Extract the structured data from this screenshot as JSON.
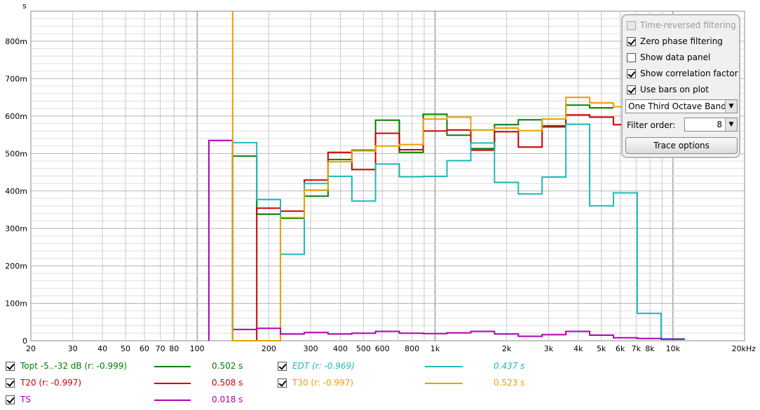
{
  "chart_data": {
    "type": "line",
    "step": true,
    "title": "",
    "ylabel": "s",
    "xlabel": "",
    "x_scale": "log",
    "xlim": [
      20,
      20000
    ],
    "ylim": [
      0,
      0.88
    ],
    "grid": true,
    "x_ticks": [
      {
        "v": 20,
        "label": "20"
      },
      {
        "v": 30,
        "label": "30"
      },
      {
        "v": 40,
        "label": "40"
      },
      {
        "v": 50,
        "label": "50"
      },
      {
        "v": 60,
        "label": "60"
      },
      {
        "v": 70,
        "label": "70"
      },
      {
        "v": 80,
        "label": "80"
      },
      {
        "v": 100,
        "label": "100"
      },
      {
        "v": 200,
        "label": "200"
      },
      {
        "v": 300,
        "label": "300"
      },
      {
        "v": 400,
        "label": "400"
      },
      {
        "v": 500,
        "label": "500"
      },
      {
        "v": 600,
        "label": "600"
      },
      {
        "v": 800,
        "label": "800"
      },
      {
        "v": 1000,
        "label": "1k"
      },
      {
        "v": 2000,
        "label": "2k"
      },
      {
        "v": 3000,
        "label": "3k"
      },
      {
        "v": 4000,
        "label": "4k"
      },
      {
        "v": 5000,
        "label": "5k"
      },
      {
        "v": 6000,
        "label": "6k"
      },
      {
        "v": 7000,
        "label": "7k"
      },
      {
        "v": 8000,
        "label": "8k"
      },
      {
        "v": 10000,
        "label": "10k"
      },
      {
        "v": 20000,
        "label": "20kHz"
      }
    ],
    "y_ticks": [
      {
        "v": 0,
        "label": "0"
      },
      {
        "v": 0.1,
        "label": "100m"
      },
      {
        "v": 0.2,
        "label": "200m"
      },
      {
        "v": 0.3,
        "label": "300m"
      },
      {
        "v": 0.4,
        "label": "400m"
      },
      {
        "v": 0.5,
        "label": "500m"
      },
      {
        "v": 0.6,
        "label": "600m"
      },
      {
        "v": 0.7,
        "label": "700m"
      },
      {
        "v": 0.8,
        "label": "800m"
      }
    ],
    "band_edges": [
      112,
      141,
      178,
      224,
      282,
      355,
      447,
      562,
      708,
      891,
      1122,
      1413,
      1778,
      2239,
      2818,
      3548,
      4467,
      5623,
      7079,
      8913,
      11220
    ],
    "series": [
      {
        "name": "Topt -5..-32 dB (r: -0.999)",
        "color": "#008000",
        "start": 1,
        "values": [
          0.493,
          0.338,
          0.327,
          0.386,
          0.484,
          0.509,
          0.589,
          0.503,
          0.605,
          0.549,
          0.513,
          0.577,
          0.59,
          0.574,
          0.629,
          0.622,
          null,
          null,
          null,
          null
        ]
      },
      {
        "name": "T20 (r: -0.997)",
        "color": "#cc0000",
        "start": 1,
        "values": [
          0.0,
          0.354,
          0.346,
          0.429,
          0.503,
          0.457,
          0.554,
          0.51,
          0.56,
          0.563,
          0.509,
          0.558,
          0.517,
          0.571,
          0.603,
          0.597,
          0.577,
          null,
          null,
          null
        ]
      },
      {
        "name": "EDT (r: -0.969)",
        "color": "#20b8b8",
        "start": 1,
        "values": [
          0.529,
          0.377,
          0.231,
          0.42,
          0.439,
          0.373,
          0.472,
          0.438,
          0.439,
          0.481,
          0.528,
          0.423,
          0.392,
          0.437,
          0.578,
          0.36,
          0.395,
          0.073,
          0.005,
          0.002
        ]
      },
      {
        "name": "T30 (r: -0.997)",
        "color": "#e8a000",
        "start": 1,
        "values": [
          0.0,
          0.0,
          0.329,
          0.402,
          0.478,
          0.507,
          0.52,
          0.524,
          0.592,
          0.597,
          0.563,
          0.568,
          0.561,
          0.592,
          0.65,
          0.635,
          0.625,
          null,
          null,
          null
        ]
      },
      {
        "name": "TS",
        "color": "#b000b0",
        "start": 0,
        "values": [
          0.535,
          0.03,
          0.033,
          0.018,
          0.022,
          0.018,
          0.02,
          0.025,
          0.02,
          0.019,
          0.021,
          0.025,
          0.018,
          0.012,
          0.016,
          0.025,
          0.015,
          0.008,
          0.006,
          0.004
        ]
      }
    ]
  },
  "panel": {
    "opt_time_reversed": "Time-reversed filtering",
    "opt_zero_phase": "Zero phase filtering",
    "opt_data_panel": "Show data panel",
    "opt_correlation": "Show correlation factor",
    "opt_bars": "Use bars on plot",
    "bands_value": "One Third Octave Bands",
    "filter_order_label": "Filter order:",
    "filter_order_value": "8",
    "trace_button": "Trace options"
  },
  "legend": {
    "topt": {
      "label": "Topt -5..-32 dB (r: -0.999)",
      "value": "0.502 s",
      "color": "#008000"
    },
    "t20": {
      "label": "T20 (r: -0.997)",
      "value": "0.508 s",
      "color": "#cc0000"
    },
    "ts": {
      "label": "TS",
      "value": "0.018 s",
      "color": "#b000b0"
    },
    "edt": {
      "label": "EDT (r: -0.969)",
      "value": "0.437 s",
      "color": "#20b8b8"
    },
    "t30": {
      "label": "T30 (r: -0.997)",
      "value": "0.523 s",
      "color": "#e8a000"
    }
  }
}
